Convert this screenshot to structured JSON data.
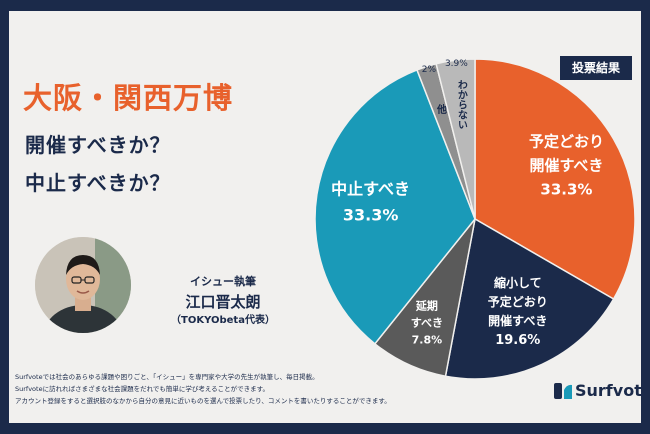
{
  "header": {
    "title": "大阪・関西万博",
    "question1": "開催すべきか？",
    "question2": "中止すべきか？",
    "badge": "投票結果"
  },
  "author": {
    "role": "イシュー執筆",
    "name": "江口晋太朗",
    "affiliation": "（TOKYObeta代表）"
  },
  "footer": {
    "note1": "Surfvoteでは社会のあらゆる課題や困りごと、「イシュー」を専門家や大学の先生が執筆し、毎日掲載。",
    "note2": "Surfvoteに訪れればさまざまな社会課題をだれでも簡単に学び考えることができます。",
    "note3": "アカウント登録をすると選択肢のなかから自分の意見に近いものを選んで投票したり、コメントを書いたりすることができます。",
    "brand": "Surfvote"
  },
  "colors": {
    "navy": "#1b2a4a",
    "orange": "#e8612c",
    "teal": "#1a9ab8",
    "gray_dark": "#5a5a5a",
    "gray_mid": "#8f8f8f",
    "gray_light": "#b9b9b9",
    "background": "#f1f0ee"
  },
  "chart_data": {
    "type": "pie",
    "slices": [
      {
        "name": "予定どおり開催すべき",
        "lines": [
          "予定どおり",
          "開催すべき"
        ],
        "value": 33.3,
        "label": "33.3%",
        "color": "#e8612c"
      },
      {
        "name": "縮小して予定どおり開催すべき",
        "lines": [
          "縮小して",
          "予定どおり",
          "開催すべき"
        ],
        "value": 19.6,
        "label": "19.6%",
        "color": "#1b2a4a"
      },
      {
        "name": "延期すべき",
        "lines": [
          "延期",
          "すべき"
        ],
        "value": 7.8,
        "label": "7.8%",
        "color": "#5a5a5a"
      },
      {
        "name": "中止すべき",
        "lines": [
          "中止すべき"
        ],
        "value": 33.3,
        "label": "33.3%",
        "color": "#1a9ab8"
      },
      {
        "name": "他",
        "lines": [
          "他"
        ],
        "value": 2,
        "label": "2%",
        "color": "#8f8f8f"
      },
      {
        "name": "わからない",
        "lines": [
          "わからない"
        ],
        "value": 3.9,
        "label": "3.9%",
        "color": "#b9b9b9"
      }
    ]
  }
}
